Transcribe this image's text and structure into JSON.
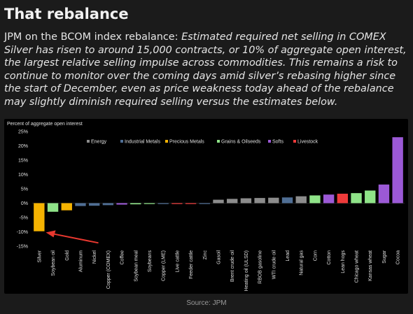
{
  "header": {
    "title": "That rebalance",
    "intro": "JPM on the BCOM index rebalance: ",
    "quote": "Estimated required net selling in COMEX Silver has risen to around 15,000 contracts, or 10% of aggregate open interest, the largest relative selling impulse across commodities. This remains a risk to continue to monitor over the coming days amid silver’s rebasing higher since the start of December, even as price weakness today ahead of the rebalance may slightly diminish required selling versus the estimates below."
  },
  "source": "Source: JPM",
  "colors": {
    "Energy": "#8c8c8c",
    "Industrial Metals": "#4f6e94",
    "Precious Metals": "#f5b301",
    "Grains & Oilseeds": "#8fe388",
    "Softs": "#9b59d6",
    "Livestock": "#ee3a3a",
    "arrow": "#e8382f"
  },
  "chart_data": {
    "type": "bar",
    "ylabel": "Percent of aggregate open interest",
    "ylim": [
      -15,
      25
    ],
    "yticks": [
      "25%",
      "20%",
      "15%",
      "10%",
      "5%",
      "0%",
      "-5%",
      "-10%",
      "-15%"
    ],
    "ytick_values": [
      25,
      20,
      15,
      10,
      5,
      0,
      -5,
      -10,
      -15
    ],
    "legend": [
      "Energy",
      "Industrial Metals",
      "Precious Metals",
      "Grains & Oilseeds",
      "Softs",
      "Livestock"
    ],
    "legend_position": "top",
    "annotation": "red arrow pointing to Silver",
    "categories": [
      "Silver",
      "Soybean oil",
      "Gold",
      "Aluminum",
      "Nickel",
      "Copper (COMEX)",
      "Coffee",
      "Soybean meal",
      "Soybeans",
      "Copper (LME)",
      "Live cattle",
      "Feeder cattle",
      "Zinc",
      "Gasoil",
      "Brent crude oil",
      "Heating oil (ULSD)",
      "RBOB gasoline",
      "WTI crude oil",
      "Lead",
      "Natural gas",
      "Corn",
      "Cotton",
      "Lean hogs",
      "Chicago wheat",
      "Kansas wheat",
      "Sugar",
      "Cocoa"
    ],
    "values": [
      -9.8,
      -3.0,
      -2.5,
      -1.0,
      -0.9,
      -0.7,
      -0.5,
      -0.4,
      -0.3,
      -0.3,
      -0.3,
      -0.3,
      -0.2,
      1.2,
      1.5,
      1.7,
      1.8,
      1.9,
      2.0,
      2.4,
      2.7,
      3.0,
      3.3,
      3.5,
      4.4,
      6.5,
      23.0
    ],
    "groups": [
      "Precious Metals",
      "Grains & Oilseeds",
      "Precious Metals",
      "Industrial Metals",
      "Industrial Metals",
      "Industrial Metals",
      "Softs",
      "Grains & Oilseeds",
      "Grains & Oilseeds",
      "Industrial Metals",
      "Livestock",
      "Livestock",
      "Industrial Metals",
      "Energy",
      "Energy",
      "Energy",
      "Energy",
      "Energy",
      "Industrial Metals",
      "Energy",
      "Grains & Oilseeds",
      "Softs",
      "Livestock",
      "Grains & Oilseeds",
      "Grains & Oilseeds",
      "Softs",
      "Softs"
    ]
  }
}
